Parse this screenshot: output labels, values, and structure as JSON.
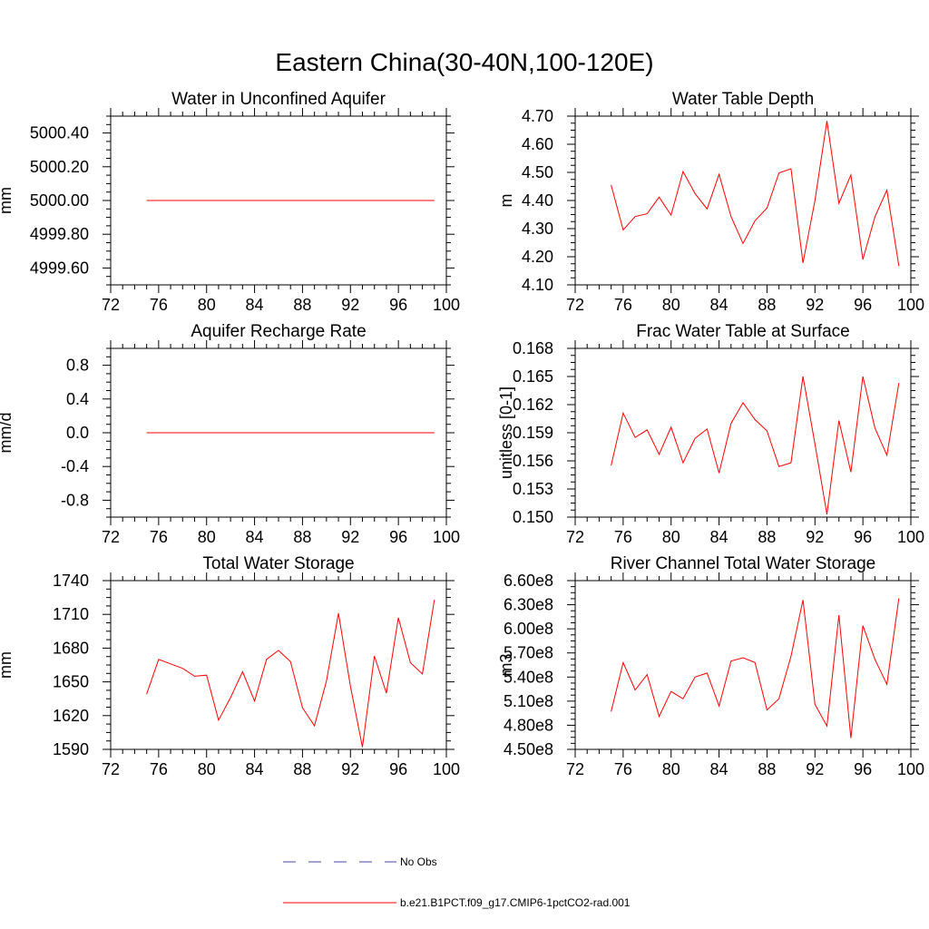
{
  "figure_title": "Eastern China(30-40N,100-120E)",
  "legend": {
    "entries": [
      {
        "label": "No Obs",
        "color": "#4a4aa8",
        "style": "dashed"
      },
      {
        "label": "b.e21.B1PCT.f09_g17.CMIP6-1pctCO2-rad.001",
        "color": "#ff0000",
        "style": "solid"
      }
    ]
  },
  "chart_data": [
    {
      "type": "line",
      "title": "Water in Unconfined Aquifer",
      "xlabel": "",
      "ylabel": "mm",
      "xlim": [
        72,
        100
      ],
      "ylim": [
        4999.5,
        5000.5
      ],
      "xticks": [
        72,
        76,
        80,
        84,
        88,
        92,
        96,
        100
      ],
      "yticks": [
        4999.6,
        4999.8,
        5000.0,
        5000.2,
        5000.4
      ],
      "ytick_labels": [
        "4999.60",
        "4999.80",
        "5000.00",
        "5000.20",
        "5000.40"
      ],
      "series": [
        {
          "color": "#ff0000",
          "x": [
            75,
            76,
            77,
            78,
            79,
            80,
            81,
            82,
            83,
            84,
            85,
            86,
            87,
            88,
            89,
            90,
            91,
            92,
            93,
            94,
            95,
            96,
            97,
            98,
            99
          ],
          "y": [
            5000,
            5000,
            5000,
            5000,
            5000,
            5000,
            5000,
            5000,
            5000,
            5000,
            5000,
            5000,
            5000,
            5000,
            5000,
            5000,
            5000,
            5000,
            5000,
            5000,
            5000,
            5000,
            5000,
            5000,
            5000
          ]
        }
      ]
    },
    {
      "type": "line",
      "title": "Water Table Depth",
      "xlabel": "",
      "ylabel": "m",
      "xlim": [
        72,
        100
      ],
      "ylim": [
        4.1,
        4.7
      ],
      "xticks": [
        72,
        76,
        80,
        84,
        88,
        92,
        96,
        100
      ],
      "yticks": [
        4.1,
        4.2,
        4.3,
        4.4,
        4.5,
        4.6,
        4.7
      ],
      "ytick_labels": [
        "4.10",
        "4.20",
        "4.30",
        "4.40",
        "4.50",
        "4.60",
        "4.70"
      ],
      "series": [
        {
          "color": "#ff0000",
          "x": [
            75,
            76,
            77,
            78,
            79,
            80,
            81,
            82,
            83,
            84,
            85,
            86,
            87,
            88,
            89,
            90,
            91,
            92,
            93,
            94,
            95,
            96,
            97,
            98,
            99
          ],
          "y": [
            4.455,
            4.295,
            4.343,
            4.353,
            4.412,
            4.348,
            4.503,
            4.425,
            4.37,
            4.493,
            4.343,
            4.247,
            4.328,
            4.373,
            4.498,
            4.513,
            4.178,
            4.4,
            4.683,
            4.39,
            4.491,
            4.19,
            4.342,
            4.437,
            4.167
          ]
        }
      ]
    },
    {
      "type": "line",
      "title": "Aquifer Recharge Rate",
      "xlabel": "",
      "ylabel": "mm/d",
      "xlim": [
        72,
        100
      ],
      "ylim": [
        -1.0,
        1.0
      ],
      "xticks": [
        72,
        76,
        80,
        84,
        88,
        92,
        96,
        100
      ],
      "yticks": [
        -0.8,
        -0.4,
        0.0,
        0.4,
        0.8
      ],
      "ytick_labels": [
        "-0.8",
        "-0.4",
        "0.0",
        "0.4",
        "0.8"
      ],
      "series": [
        {
          "color": "#ff0000",
          "x": [
            75,
            76,
            77,
            78,
            79,
            80,
            81,
            82,
            83,
            84,
            85,
            86,
            87,
            88,
            89,
            90,
            91,
            92,
            93,
            94,
            95,
            96,
            97,
            98,
            99
          ],
          "y": [
            0,
            0,
            0,
            0,
            0,
            0,
            0,
            0,
            0,
            0,
            0,
            0,
            0,
            0,
            0,
            0,
            0,
            0,
            0,
            0,
            0,
            0,
            0,
            0,
            0
          ]
        }
      ]
    },
    {
      "type": "line",
      "title": "Frac Water Table at Surface",
      "xlabel": "",
      "ylabel": "unitless [0-1]",
      "xlim": [
        72,
        100
      ],
      "ylim": [
        0.15,
        0.168
      ],
      "xticks": [
        72,
        76,
        80,
        84,
        88,
        92,
        96,
        100
      ],
      "yticks": [
        0.15,
        0.153,
        0.156,
        0.159,
        0.162,
        0.165,
        0.168
      ],
      "ytick_labels": [
        "0.150",
        "0.153",
        "0.156",
        "0.159",
        "0.162",
        "0.165",
        "0.168"
      ],
      "series": [
        {
          "color": "#ff0000",
          "x": [
            75,
            76,
            77,
            78,
            79,
            80,
            81,
            82,
            83,
            84,
            85,
            86,
            87,
            88,
            89,
            90,
            91,
            92,
            93,
            94,
            95,
            96,
            97,
            98,
            99
          ],
          "y": [
            0.1555,
            0.1611,
            0.1585,
            0.1593,
            0.1567,
            0.1596,
            0.1558,
            0.1584,
            0.1594,
            0.1547,
            0.16,
            0.1622,
            0.1604,
            0.1592,
            0.1554,
            0.1558,
            0.165,
            0.1578,
            0.1503,
            0.1603,
            0.1548,
            0.165,
            0.1595,
            0.1566,
            0.1643
          ]
        }
      ]
    },
    {
      "type": "line",
      "title": "Total Water Storage",
      "xlabel": "",
      "ylabel": "mm",
      "xlim": [
        72,
        100
      ],
      "ylim": [
        1590,
        1740
      ],
      "xticks": [
        72,
        76,
        80,
        84,
        88,
        92,
        96,
        100
      ],
      "yticks": [
        1590,
        1620,
        1650,
        1680,
        1710,
        1740
      ],
      "ytick_labels": [
        "1590",
        "1620",
        "1650",
        "1680",
        "1710",
        "1740"
      ],
      "series": [
        {
          "color": "#ff0000",
          "x": [
            75,
            76,
            77,
            78,
            79,
            80,
            81,
            82,
            83,
            84,
            85,
            86,
            87,
            88,
            89,
            90,
            91,
            92,
            93,
            94,
            95,
            96,
            97,
            98,
            99
          ],
          "y": [
            1639,
            1670,
            1666,
            1662,
            1655,
            1656,
            1616,
            1636,
            1659,
            1633,
            1670,
            1678,
            1668,
            1627,
            1611,
            1651,
            1711,
            1646,
            1592,
            1673,
            1640,
            1707,
            1667,
            1657,
            1723
          ]
        }
      ]
    },
    {
      "type": "line",
      "title": "River Channel Total Water Storage",
      "xlabel": "",
      "ylabel": "m3",
      "xlim": [
        72,
        100
      ],
      "ylim": [
        450000000,
        660000000
      ],
      "xticks": [
        72,
        76,
        80,
        84,
        88,
        92,
        96,
        100
      ],
      "yticks": [
        450000000,
        480000000,
        510000000,
        540000000,
        570000000,
        600000000,
        630000000,
        660000000
      ],
      "ytick_labels": [
        "4.50e8",
        "4.80e8",
        "5.10e8",
        "5.40e8",
        "5.70e8",
        "6.00e8",
        "6.30e8",
        "6.60e8"
      ],
      "series": [
        {
          "color": "#ff0000",
          "x": [
            75,
            76,
            77,
            78,
            79,
            80,
            81,
            82,
            83,
            84,
            85,
            86,
            87,
            88,
            89,
            90,
            91,
            92,
            93,
            94,
            95,
            96,
            97,
            98,
            99
          ],
          "y": [
            497000000,
            558000000,
            524000000,
            543000000,
            491000000,
            522000000,
            513000000,
            540000000,
            545000000,
            504000000,
            560000000,
            564000000,
            558000000,
            499000000,
            513000000,
            566000000,
            636000000,
            506000000,
            479000000,
            617000000,
            464000000,
            604000000,
            562000000,
            531000000,
            638000000
          ]
        }
      ]
    }
  ]
}
